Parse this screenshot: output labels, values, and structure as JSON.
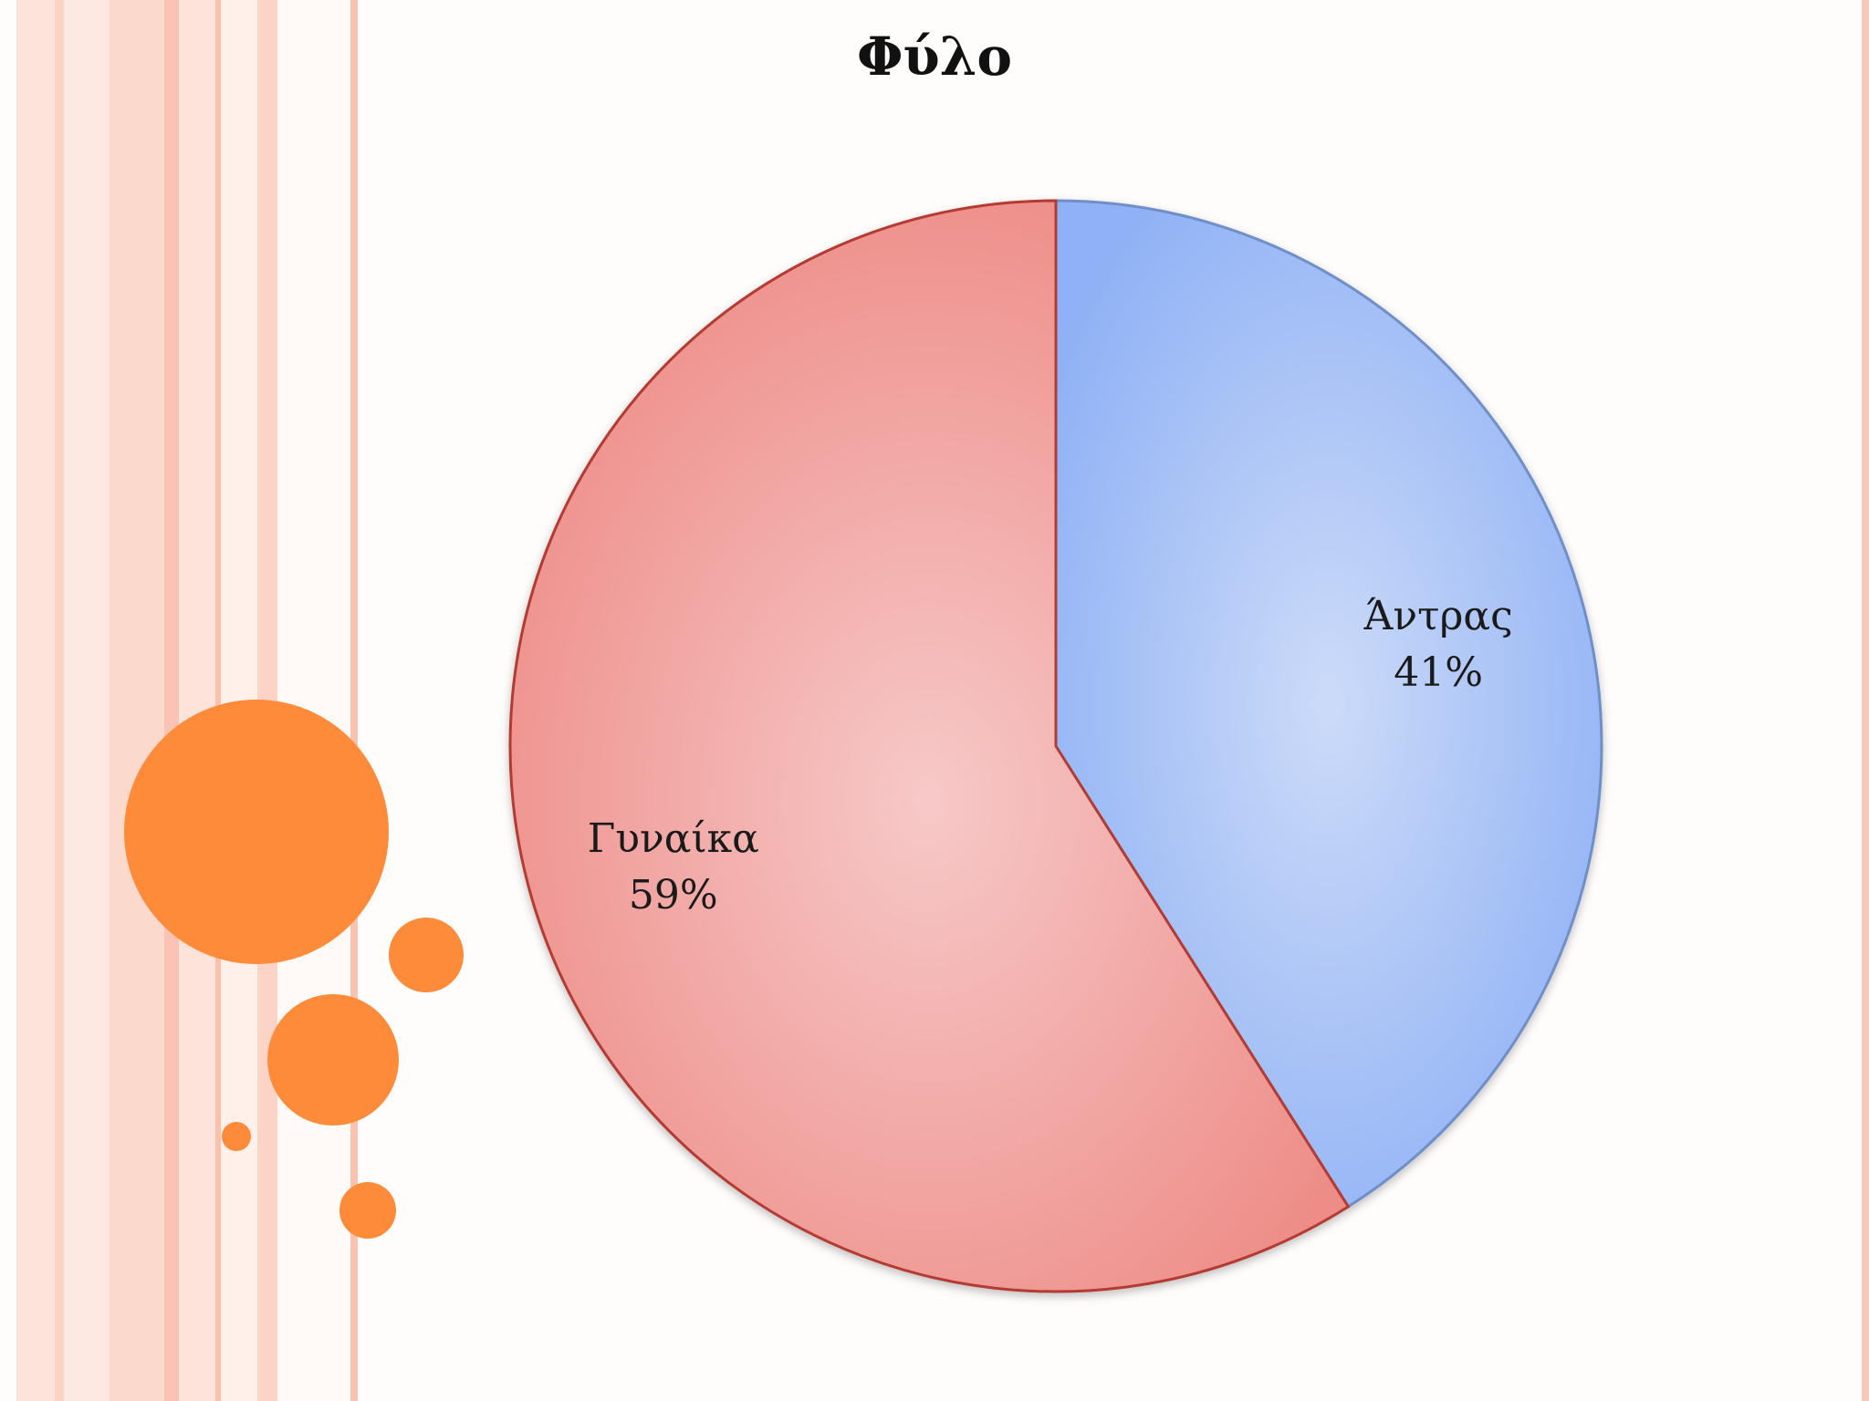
{
  "chart_data": {
    "type": "pie",
    "title": "Φύλο",
    "categories": [
      "Άντρας",
      "Γυναίκα"
    ],
    "values": [
      41,
      59
    ],
    "value_labels": [
      "41%",
      "59%"
    ],
    "legend": "none",
    "colors": [
      "#a9c1f6",
      "#f0a3a0"
    ],
    "edge_colors": [
      "#6f8fc8",
      "#b43a33"
    ]
  },
  "theme": {
    "accent": "#fd8b3a",
    "stripe": "#f8c4b2"
  }
}
